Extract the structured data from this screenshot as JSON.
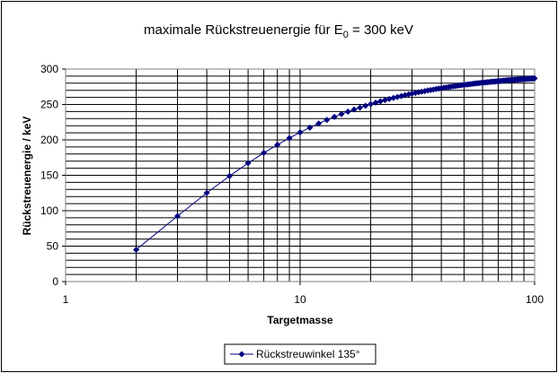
{
  "chart_data": {
    "type": "scatter",
    "title": {
      "prefix": "maximale Rückstreuenergie für E",
      "subscript": "0",
      "suffix": " = 300 keV"
    },
    "xlabel": "Targetmasse",
    "ylabel": "Rückstreuenergie / keV",
    "x_scale": "log",
    "xlim": [
      1,
      100
    ],
    "ylim": [
      0,
      300
    ],
    "x_ticks": [
      {
        "value": 1,
        "label": "1"
      },
      {
        "value": 10,
        "label": "10"
      },
      {
        "value": 100,
        "label": "100"
      }
    ],
    "y_ticks": [
      {
        "value": 0,
        "label": "0"
      },
      {
        "value": 50,
        "label": "50"
      },
      {
        "value": 100,
        "label": "100"
      },
      {
        "value": 150,
        "label": "150"
      },
      {
        "value": 200,
        "label": "200"
      },
      {
        "value": 250,
        "label": "250"
      },
      {
        "value": 300,
        "label": "300"
      }
    ],
    "grid": true,
    "legend_position": "bottom",
    "series": [
      {
        "name": "Rückstreuwinkel 135°",
        "color": "#000080",
        "marker": "diamond",
        "x": [
          2,
          3,
          4,
          5,
          6,
          7,
          8,
          9,
          10,
          11,
          12,
          13,
          14,
          15,
          16,
          17,
          18,
          19,
          20,
          21,
          22,
          23,
          24,
          25,
          26,
          27,
          28,
          29,
          30,
          31,
          32,
          33,
          34,
          35,
          36,
          37,
          38,
          39,
          40,
          41,
          42,
          43,
          44,
          45,
          46,
          47,
          48,
          49,
          50,
          51,
          52,
          53,
          54,
          55,
          56,
          57,
          58,
          59,
          60,
          61,
          62,
          63,
          64,
          65,
          66,
          67,
          68,
          69,
          70,
          71,
          72,
          73,
          74,
          75,
          76,
          77,
          78,
          79,
          80,
          81,
          82,
          83,
          84,
          85,
          86,
          87,
          88,
          89,
          90,
          91,
          92,
          93,
          94,
          95,
          96,
          97,
          98,
          99,
          100
        ],
        "y": [
          45.0,
          92.4,
          125.2,
          149.0,
          167.2,
          181.6,
          193.1,
          202.6,
          210.6,
          217.3,
          223.1,
          228.1,
          232.5,
          236.4,
          239.8,
          242.9,
          245.6,
          248.1,
          250.4,
          252.5,
          254.4,
          256.1,
          257.7,
          259.2,
          260.6,
          261.9,
          263.1,
          264.2,
          265.3,
          266.3,
          267.2,
          268.1,
          268.9,
          269.7,
          270.4,
          271.1,
          271.8,
          272.4,
          273.0,
          273.6,
          274.1,
          274.6,
          275.1,
          275.6,
          276.0,
          276.5,
          276.9,
          277.3,
          277.7,
          278.0,
          278.4,
          278.7,
          279.0,
          279.4,
          279.7,
          279.9,
          280.2,
          280.5,
          280.8,
          281.0,
          281.2,
          281.5,
          281.7,
          281.9,
          282.1,
          282.3,
          282.5,
          282.7,
          282.9,
          283.1,
          283.3,
          283.5,
          283.6,
          283.8,
          284.0,
          284.1,
          284.3,
          284.4,
          284.6,
          284.7,
          284.8,
          285.0,
          285.1,
          285.2,
          285.3,
          285.5,
          285.6,
          285.7,
          285.8,
          285.9,
          286.0,
          286.1,
          286.2,
          286.3,
          286.4,
          286.5,
          286.6,
          286.7,
          286.8
        ]
      }
    ]
  }
}
